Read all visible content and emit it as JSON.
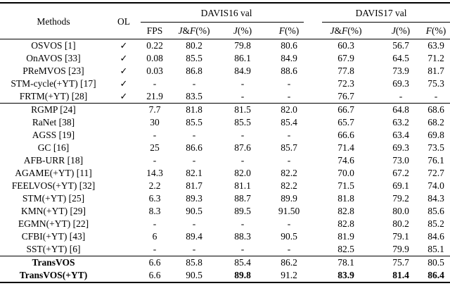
{
  "table": {
    "header": {
      "methods": "Methods",
      "ol": "OL",
      "group_davis16": "DAVIS16 val",
      "group_davis17": "DAVIS17 val",
      "subheaders": [
        "FPS",
        "J&F(%)",
        "J(%)",
        "F(%)",
        "J&F(%)",
        "J(%)",
        "F(%)"
      ]
    },
    "checkmark": "✓",
    "missing_value": "-",
    "groups": [
      {
        "rows": [
          {
            "method": "OSVOS [1]",
            "ol": true,
            "cells": [
              "0.22",
              "80.2",
              "79.8",
              "80.6",
              "60.3",
              "56.7",
              "63.9"
            ],
            "bold_method": false,
            "bold_cells": []
          },
          {
            "method": "OnAVOS [33]",
            "ol": true,
            "cells": [
              "0.08",
              "85.5",
              "86.1",
              "84.9",
              "67.9",
              "64.5",
              "71.2"
            ],
            "bold_method": false,
            "bold_cells": []
          },
          {
            "method": "PReMVOS [23]",
            "ol": true,
            "cells": [
              "0.03",
              "86.8",
              "84.9",
              "88.6",
              "77.8",
              "73.9",
              "81.7"
            ],
            "bold_method": false,
            "bold_cells": []
          },
          {
            "method": "STM-cycle(+YT) [17]",
            "ol": true,
            "cells": [
              "-",
              "-",
              "-",
              "-",
              "72.3",
              "69.3",
              "75.3"
            ],
            "bold_method": false,
            "bold_cells": []
          },
          {
            "method": "FRTM(+YT) [28]",
            "ol": true,
            "cells": [
              "21.9",
              "83.5",
              "-",
              "-",
              "76.7",
              "-",
              "-"
            ],
            "bold_method": false,
            "bold_cells": []
          }
        ]
      },
      {
        "rows": [
          {
            "method": "RGMP [24]",
            "ol": false,
            "cells": [
              "7.7",
              "81.8",
              "81.5",
              "82.0",
              "66.7",
              "64.8",
              "68.6"
            ],
            "bold_method": false,
            "bold_cells": []
          },
          {
            "method": "RaNet [38]",
            "ol": false,
            "cells": [
              "30",
              "85.5",
              "85.5",
              "85.4",
              "65.7",
              "63.2",
              "68.2"
            ],
            "bold_method": false,
            "bold_cells": []
          },
          {
            "method": "AGSS [19]",
            "ol": false,
            "cells": [
              "-",
              "-",
              "-",
              "-",
              "66.6",
              "63.4",
              "69.8"
            ],
            "bold_method": false,
            "bold_cells": []
          },
          {
            "method": "GC [16]",
            "ol": false,
            "cells": [
              "25",
              "86.6",
              "87.6",
              "85.7",
              "71.4",
              "69.3",
              "73.5"
            ],
            "bold_method": false,
            "bold_cells": []
          },
          {
            "method": "AFB-URR [18]",
            "ol": false,
            "cells": [
              "-",
              "-",
              "-",
              "-",
              "74.6",
              "73.0",
              "76.1"
            ],
            "bold_method": false,
            "bold_cells": []
          },
          {
            "method": "AGAME(+YT) [11]",
            "ol": false,
            "cells": [
              "14.3",
              "82.1",
              "82.0",
              "82.2",
              "70.0",
              "67.2",
              "72.7"
            ],
            "bold_method": false,
            "bold_cells": []
          },
          {
            "method": "FEELVOS(+YT) [32]",
            "ol": false,
            "cells": [
              "2.2",
              "81.7",
              "81.1",
              "82.2",
              "71.5",
              "69.1",
              "74.0"
            ],
            "bold_method": false,
            "bold_cells": []
          },
          {
            "method": "STM(+YT) [25]",
            "ol": false,
            "cells": [
              "6.3",
              "89.3",
              "88.7",
              "89.9",
              "81.8",
              "79.2",
              "84.3"
            ],
            "bold_method": false,
            "bold_cells": []
          },
          {
            "method": "KMN(+YT) [29]",
            "ol": false,
            "cells": [
              "8.3",
              "90.5",
              "89.5",
              "91.50",
              "82.8",
              "80.0",
              "85.6"
            ],
            "bold_method": false,
            "bold_cells": []
          },
          {
            "method": "EGMN(+YT) [22]",
            "ol": false,
            "cells": [
              "-",
              "-",
              "-",
              "-",
              "82.8",
              "80.2",
              "85.2"
            ],
            "bold_method": false,
            "bold_cells": []
          },
          {
            "method": "CFBI(+YT) [43]",
            "ol": false,
            "cells": [
              "6",
              "89.4",
              "88.3",
              "90.5",
              "81.9",
              "79.1",
              "84.6"
            ],
            "bold_method": false,
            "bold_cells": []
          },
          {
            "method": "SST(+YT) [6]",
            "ol": false,
            "cells": [
              "-",
              "-",
              "-",
              "-",
              "82.5",
              "79.9",
              "85.1"
            ],
            "bold_method": false,
            "bold_cells": []
          }
        ]
      },
      {
        "rows": [
          {
            "method": "TransVOS",
            "ol": false,
            "cells": [
              "6.6",
              "85.8",
              "85.4",
              "86.2",
              "78.1",
              "75.7",
              "80.5"
            ],
            "bold_method": true,
            "bold_cells": []
          },
          {
            "method": "TransVOS(+YT)",
            "ol": false,
            "cells": [
              "6.6",
              "90.5",
              "89.8",
              "91.2",
              "83.9",
              "81.4",
              "86.4"
            ],
            "bold_method": true,
            "bold_cells": [
              2,
              4,
              5,
              6
            ]
          }
        ]
      }
    ]
  }
}
